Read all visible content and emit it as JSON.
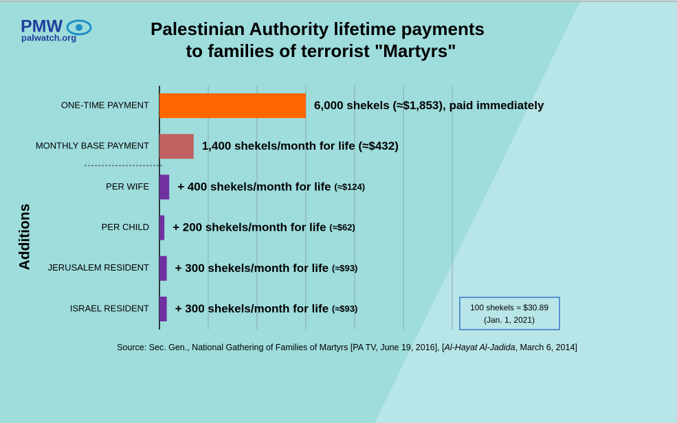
{
  "logo": {
    "name": "PMW",
    "site": "palwatch.org"
  },
  "chart_data": {
    "type": "hbar",
    "title": [
      "Palestinian Authority lifetime payments",
      "to families of terrorist \"Martyrs\""
    ],
    "y_label": "Additions",
    "categories": [
      "ONE-TIME PAYMENT",
      "MONTHLY BASE PAYMENT",
      "PER WIFE",
      "PER CHILD",
      "JERUSALEM RESIDENT",
      "ISRAEL RESIDENT"
    ],
    "values": [
      6000,
      1400,
      400,
      200,
      300,
      300
    ],
    "value_labels": [
      "6,000 shekels (≈$1,853), paid immediately",
      "1,400 shekels/month for life (≈$432)",
      "+ 400 shekels/month for life",
      "+ 200 shekels/month for life",
      "+ 300 shekels/month for life",
      "+ 300 shekels/month for life"
    ],
    "usd_labels": [
      null,
      null,
      "(≈$124)",
      "(≈$62)",
      "(≈$93)",
      "(≈$93)"
    ],
    "colors": [
      "#ff6600",
      "#c0605f",
      "#7030a0",
      "#7030a0",
      "#7030a0",
      "#7030a0"
    ],
    "xlim": [
      0,
      12000
    ],
    "xticks": [
      0,
      2000,
      4000,
      6000,
      8000,
      10000,
      12000
    ],
    "grid": true,
    "note": [
      "100 shekels ≈ $30.89",
      "(Jan. 1, 2021)"
    ],
    "source": [
      "Source: Sec. Gen., National Gathering of Families of Martyrs [PA TV, June 19, 2016], [",
      "Al-Hayat Al-Jadida",
      ", March 6, 2014]"
    ]
  }
}
